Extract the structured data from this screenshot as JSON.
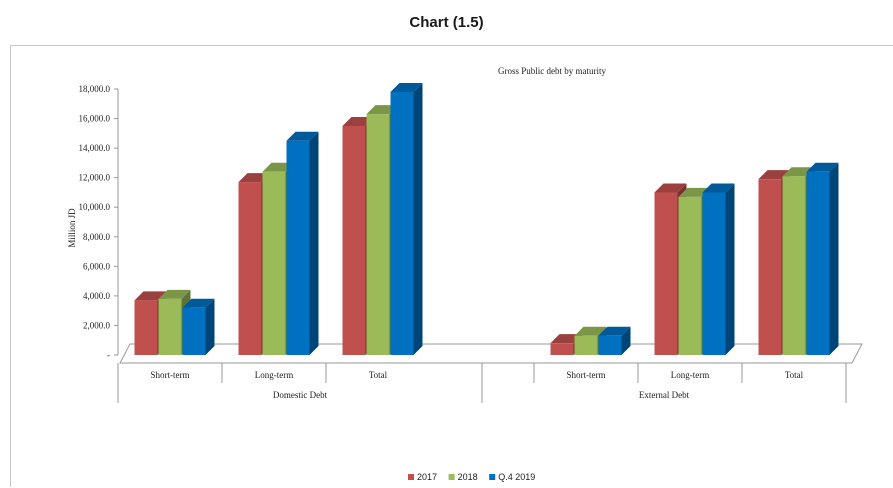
{
  "page": {
    "heading": "Chart (1.5)"
  },
  "chart_data": {
    "type": "bar",
    "title": "Gross Public debt by maturity",
    "ylabel": "Million JD",
    "xlabel": "",
    "ylim": [
      0,
      18000
    ],
    "yticks": [
      "-",
      "2,000.0",
      "4,000.0",
      "6,000.0",
      "8,000.0",
      "10,000.0",
      "12,000.0",
      "14,000.0",
      "16,000.0",
      "18,000.0"
    ],
    "groups": [
      {
        "name": "Domestic Debt",
        "categories": [
          "Short-term",
          "Long-term",
          "Total"
        ]
      },
      {
        "name": "External Debt",
        "categories": [
          "Short-term",
          "Long-term",
          "Total"
        ]
      }
    ],
    "categories": [
      "Short-term",
      "Long-term",
      "Total",
      "Short-term",
      "Long-term",
      "Total"
    ],
    "series": [
      {
        "name": "2017",
        "color": "#c0504d",
        "values": [
          3700,
          11700,
          15500,
          800,
          11000,
          11900
        ]
      },
      {
        "name": "2018",
        "color": "#9bbb59",
        "values": [
          3800,
          12400,
          16300,
          1300,
          10700,
          12100
        ]
      },
      {
        "name": "Q.4 2019",
        "color": "#0070c0",
        "values": [
          3200,
          14500,
          17800,
          1300,
          11000,
          12400
        ]
      }
    ],
    "grid": false,
    "legend_position": "bottom"
  }
}
